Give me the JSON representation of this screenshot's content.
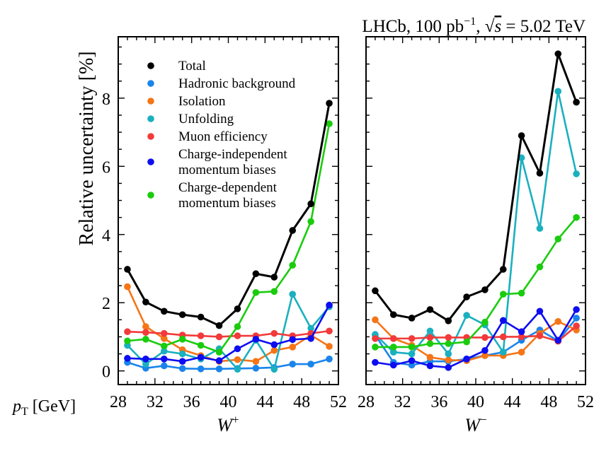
{
  "chart_data": {
    "type": "line",
    "title": "LHCb, 100 pb⁻¹, √s = 5.02 TeV",
    "title_parts": {
      "experiment": "LHCb, 100 pb",
      "exponent": "−1",
      "sqrt_s": "s",
      "energy": " = 5.02 TeV"
    },
    "ylabel": "Relative uncertainty [%]",
    "xlabel": "p_T [GeV]",
    "xlabel_main": "p",
    "xlabel_sub": "T",
    "xlabel_unit": " [GeV]",
    "ylim": [
      -0.4,
      9.8
    ],
    "yticks": [
      0,
      2,
      4,
      6,
      8
    ],
    "xlim": [
      28,
      52
    ],
    "xticks": [
      28,
      32,
      36,
      40,
      44,
      48,
      52
    ],
    "legend_position": "upper-left",
    "legend": [
      {
        "key": "total",
        "lines": [
          "Total"
        ]
      },
      {
        "key": "hadronic",
        "lines": [
          "Hadronic background"
        ]
      },
      {
        "key": "isolation",
        "lines": [
          "Isolation"
        ]
      },
      {
        "key": "unfolding",
        "lines": [
          "Unfolding"
        ]
      },
      {
        "key": "muon",
        "lines": [
          "Muon efficiency"
        ]
      },
      {
        "key": "ci",
        "lines": [
          "Charge-independent",
          "momentum biases"
        ]
      },
      {
        "key": "cd",
        "lines": [
          "Charge-dependent",
          "momentum biases"
        ]
      }
    ],
    "colors": {
      "total": "#000000",
      "hadronic": "#1a84ea",
      "isolation": "#f57517",
      "unfolding": "#1ab0bf",
      "muon": "#f23a3a",
      "ci": "#0d0df0",
      "cd": "#1acc0d"
    },
    "x": [
      29,
      31,
      33,
      35,
      37,
      39,
      41,
      43,
      45,
      47,
      49,
      51
    ],
    "panels": [
      {
        "label": "W",
        "charge": "+",
        "series": [
          {
            "key": "hadronic",
            "values": [
              0.25,
              0.08,
              0.15,
              0.07,
              0.06,
              0.06,
              0.07,
              0.08,
              0.1,
              0.2,
              0.2,
              0.35
            ]
          },
          {
            "key": "isolation",
            "values": [
              2.47,
              1.3,
              0.95,
              0.62,
              0.45,
              0.28,
              0.33,
              0.28,
              0.6,
              0.7,
              1.05,
              0.72
            ]
          },
          {
            "key": "unfolding",
            "values": [
              0.75,
              0.2,
              0.58,
              0.5,
              0.35,
              0.65,
              0.05,
              0.9,
              0.05,
              2.25,
              1.25,
              1.88
            ]
          },
          {
            "key": "muon",
            "values": [
              1.15,
              1.13,
              1.1,
              1.05,
              1.03,
              1.0,
              1.03,
              1.03,
              1.1,
              1.03,
              1.1,
              1.17
            ]
          },
          {
            "key": "ci",
            "values": [
              0.37,
              0.35,
              0.35,
              0.28,
              0.4,
              0.3,
              0.65,
              0.93,
              0.77,
              0.92,
              0.95,
              1.93
            ]
          },
          {
            "key": "cd",
            "values": [
              0.88,
              0.93,
              0.73,
              0.93,
              0.75,
              0.55,
              1.3,
              2.3,
              2.33,
              3.1,
              4.38,
              7.25
            ]
          },
          {
            "key": "total",
            "values": [
              2.98,
              2.02,
              1.75,
              1.65,
              1.58,
              1.33,
              1.82,
              2.85,
              2.75,
              4.12,
              4.9,
              7.85
            ]
          }
        ]
      },
      {
        "label": "W",
        "charge": "−",
        "series": [
          {
            "key": "hadronic",
            "values": [
              1.05,
              0.25,
              0.17,
              0.28,
              0.28,
              0.35,
              0.45,
              0.55,
              0.9,
              1.2,
              0.88,
              1.55
            ]
          },
          {
            "key": "isolation",
            "values": [
              1.5,
              0.95,
              0.75,
              0.4,
              0.32,
              0.3,
              0.45,
              0.45,
              0.55,
              1.1,
              1.45,
              1.2
            ]
          },
          {
            "key": "unfolding",
            "values": [
              1.07,
              0.55,
              0.5,
              1.17,
              0.5,
              1.63,
              1.35,
              0.55,
              6.25,
              4.18,
              8.2,
              5.78
            ]
          },
          {
            "key": "muon",
            "values": [
              0.95,
              0.95,
              0.95,
              0.98,
              0.98,
              0.98,
              0.98,
              1.0,
              1.0,
              1.03,
              0.87,
              1.32
            ]
          },
          {
            "key": "ci",
            "values": [
              0.25,
              0.17,
              0.3,
              0.15,
              0.1,
              0.35,
              0.6,
              1.48,
              1.15,
              1.75,
              0.9,
              1.8
            ]
          },
          {
            "key": "cd",
            "values": [
              0.7,
              0.7,
              0.7,
              0.8,
              0.8,
              0.85,
              1.43,
              2.25,
              2.28,
              3.05,
              3.87,
              4.5
            ]
          },
          {
            "key": "total",
            "values": [
              2.35,
              1.65,
              1.55,
              1.8,
              1.47,
              2.17,
              2.38,
              2.98,
              6.9,
              5.8,
              9.3,
              7.88
            ]
          }
        ]
      }
    ]
  }
}
